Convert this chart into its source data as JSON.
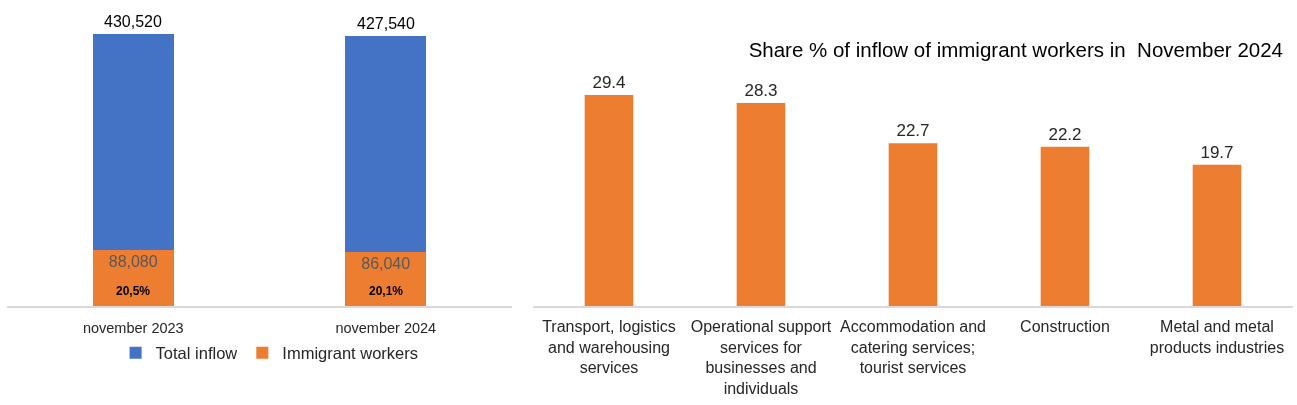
{
  "chart_data": [
    {
      "type": "bar",
      "categories": [
        "november 2023",
        "november 2024"
      ],
      "stacked": true,
      "series": [
        {
          "name": "Immigrant workers",
          "color": "#ed7d31",
          "values": [
            88080,
            86040
          ],
          "value_labels": [
            "88,080",
            "86,040"
          ]
        },
        {
          "name": "Total inflow",
          "color": "#4472c4",
          "values": [
            342440,
            341500
          ]
        }
      ],
      "totals": [
        "430,520",
        "427,540"
      ],
      "annotations": [
        "20,5%",
        "20,1%"
      ],
      "legend": "bottom",
      "tick_labels": "x"
    },
    {
      "type": "bar",
      "title": "Share % of inflow of immigrant workers in  November 2024",
      "categories": [
        "Transport, logistics and warehousing services",
        "Operational support services for businesses and individuals",
        "Accommodation and catering services; tourist services",
        "Construction",
        "Metal and metal products industries"
      ],
      "values": [
        29.4,
        28.3,
        22.7,
        22.2,
        19.7
      ],
      "color": "#ed7d31",
      "data_labels": true,
      "tick_labels": "x"
    }
  ]
}
